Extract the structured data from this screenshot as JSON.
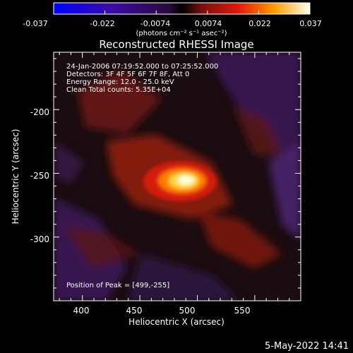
{
  "colorbar": {
    "ticks": [
      "-0.037",
      "-0.022",
      "-0.0074",
      "0.0074",
      "0.022",
      "0.037"
    ],
    "unit_label": "(photons cm⁻² s⁻¹ asec⁻²)"
  },
  "chart_data": {
    "type": "heatmap",
    "title": "Reconstructed RHESSI Image",
    "xlabel": "Heliocentric X (arcsec)",
    "ylabel": "Heliocentric Y (arcsec)",
    "xlim": [
      375,
      590
    ],
    "ylim": [
      -350,
      -155
    ],
    "x_ticks": [
      400,
      450,
      500,
      550
    ],
    "y_ticks": [
      -200,
      -250,
      -300
    ],
    "zlim": [
      -0.037,
      0.037
    ],
    "peak": {
      "x": 499,
      "y": -255
    },
    "annotations": [
      "24-Jan-2006 07:19:52.000 to 07:25:52.000",
      "Detectors: 3F 4F 5F 6F 7F 8F, Att 0",
      "Energy Range: 12.0 - 25.0 keV",
      "Clean    Total counts: 5.35E+04"
    ],
    "peak_label": "Position of Peak = [499,-255]"
  },
  "footer": {
    "timestamp": "5-May-2022 14:41"
  }
}
